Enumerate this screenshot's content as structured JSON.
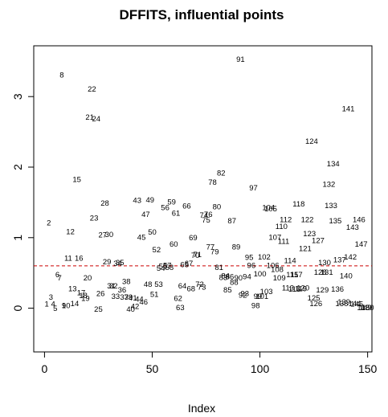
{
  "chart_data": {
    "type": "scatter",
    "title": "DFFITS, influential points",
    "xlabel": "Index",
    "ylabel": "",
    "xlim": [
      -5,
      152
    ],
    "ylim": [
      -0.62,
      3.72
    ],
    "xticks": [
      0,
      50,
      100,
      150
    ],
    "yticks": [
      0,
      1,
      2,
      3
    ],
    "grid": false,
    "reference_line": {
      "y": 0.6,
      "color": "#cc0000",
      "style": "dashed"
    },
    "points": [
      {
        "label": "1",
        "x": 1,
        "y": 0.05
      },
      {
        "label": "2",
        "x": 2,
        "y": 1.2
      },
      {
        "label": "3",
        "x": 3,
        "y": 0.15
      },
      {
        "label": "4",
        "x": 4,
        "y": 0.05
      },
      {
        "label": "5",
        "x": 5,
        "y": -0.01
      },
      {
        "label": "6",
        "x": 6,
        "y": 0.47
      },
      {
        "label": "7",
        "x": 7,
        "y": 0.42
      },
      {
        "label": "8",
        "x": 8,
        "y": 3.3
      },
      {
        "label": "9",
        "x": 9,
        "y": 0.03
      },
      {
        "label": "10",
        "x": 10,
        "y": 0.03
      },
      {
        "label": "11",
        "x": 11,
        "y": 0.7
      },
      {
        "label": "12",
        "x": 12,
        "y": 1.08
      },
      {
        "label": "13",
        "x": 13,
        "y": 0.27
      },
      {
        "label": "14",
        "x": 14,
        "y": 0.06
      },
      {
        "label": "15",
        "x": 15,
        "y": 1.82
      },
      {
        "label": "16",
        "x": 16,
        "y": 0.7
      },
      {
        "label": "17",
        "x": 17,
        "y": 0.21
      },
      {
        "label": "18",
        "x": 18,
        "y": 0.17
      },
      {
        "label": "19",
        "x": 19,
        "y": 0.13
      },
      {
        "label": "20",
        "x": 20,
        "y": 0.42
      },
      {
        "label": "21",
        "x": 21,
        "y": 2.7
      },
      {
        "label": "22",
        "x": 22,
        "y": 3.1
      },
      {
        "label": "23",
        "x": 23,
        "y": 1.27
      },
      {
        "label": "24",
        "x": 24,
        "y": 2.68
      },
      {
        "label": "25",
        "x": 25,
        "y": -0.02
      },
      {
        "label": "26",
        "x": 26,
        "y": 0.2
      },
      {
        "label": "27",
        "x": 27,
        "y": 1.03
      },
      {
        "label": "28",
        "x": 28,
        "y": 1.48
      },
      {
        "label": "29",
        "x": 29,
        "y": 0.65
      },
      {
        "label": "30",
        "x": 30,
        "y": 1.04
      },
      {
        "label": "31",
        "x": 31,
        "y": 0.31
      },
      {
        "label": "32",
        "x": 32,
        "y": 0.31
      },
      {
        "label": "33",
        "x": 33,
        "y": 0.16
      },
      {
        "label": "34",
        "x": 34,
        "y": 0.63
      },
      {
        "label": "35",
        "x": 35,
        "y": 0.64
      },
      {
        "label": "36",
        "x": 36,
        "y": 0.25
      },
      {
        "label": "37",
        "x": 37,
        "y": 0.15
      },
      {
        "label": "38",
        "x": 38,
        "y": 0.37
      },
      {
        "label": "39",
        "x": 39,
        "y": 0.15
      },
      {
        "label": "40",
        "x": 40,
        "y": -0.02
      },
      {
        "label": "41",
        "x": 41,
        "y": 0.14
      },
      {
        "label": "42",
        "x": 42,
        "y": 0.02
      },
      {
        "label": "43",
        "x": 43,
        "y": 1.52
      },
      {
        "label": "44",
        "x": 44,
        "y": 0.12
      },
      {
        "label": "45",
        "x": 45,
        "y": 1.0
      },
      {
        "label": "46",
        "x": 46,
        "y": 0.08
      },
      {
        "label": "47",
        "x": 47,
        "y": 1.32
      },
      {
        "label": "48",
        "x": 48,
        "y": 0.33
      },
      {
        "label": "49",
        "x": 49,
        "y": 1.53
      },
      {
        "label": "50",
        "x": 50,
        "y": 1.07
      },
      {
        "label": "51",
        "x": 51,
        "y": 0.19
      },
      {
        "label": "52",
        "x": 52,
        "y": 0.82
      },
      {
        "label": "53",
        "x": 53,
        "y": 0.33
      },
      {
        "label": "54",
        "x": 54,
        "y": 0.56
      },
      {
        "label": "55",
        "x": 55,
        "y": 0.59
      },
      {
        "label": "56",
        "x": 56,
        "y": 1.42
      },
      {
        "label": "57",
        "x": 57,
        "y": 0.6
      },
      {
        "label": "58",
        "x": 58,
        "y": 0.57
      },
      {
        "label": "59",
        "x": 59,
        "y": 1.5
      },
      {
        "label": "60",
        "x": 60,
        "y": 0.9
      },
      {
        "label": "61",
        "x": 61,
        "y": 1.34
      },
      {
        "label": "62",
        "x": 62,
        "y": 0.13
      },
      {
        "label": "63",
        "x": 63,
        "y": 0.0
      },
      {
        "label": "64",
        "x": 64,
        "y": 0.31
      },
      {
        "label": "65",
        "x": 65,
        "y": 0.61
      },
      {
        "label": "66",
        "x": 66,
        "y": 1.44
      },
      {
        "label": "67",
        "x": 67,
        "y": 0.63
      },
      {
        "label": "68",
        "x": 68,
        "y": 0.27
      },
      {
        "label": "69",
        "x": 69,
        "y": 0.99
      },
      {
        "label": "70",
        "x": 70,
        "y": 0.74
      },
      {
        "label": "71",
        "x": 71,
        "y": 0.75
      },
      {
        "label": "72",
        "x": 72,
        "y": 0.33
      },
      {
        "label": "73",
        "x": 73,
        "y": 0.29
      },
      {
        "label": "74",
        "x": 74,
        "y": 1.31
      },
      {
        "label": "75",
        "x": 75,
        "y": 1.24
      },
      {
        "label": "76",
        "x": 76,
        "y": 1.32
      },
      {
        "label": "77",
        "x": 77,
        "y": 0.86
      },
      {
        "label": "78",
        "x": 78,
        "y": 1.78
      },
      {
        "label": "79",
        "x": 79,
        "y": 0.79
      },
      {
        "label": "80",
        "x": 80,
        "y": 1.43
      },
      {
        "label": "81",
        "x": 81,
        "y": 0.57
      },
      {
        "label": "82",
        "x": 82,
        "y": 1.91
      },
      {
        "label": "83",
        "x": 83,
        "y": 0.43
      },
      {
        "label": "84",
        "x": 84,
        "y": 0.45
      },
      {
        "label": "85",
        "x": 85,
        "y": 0.25
      },
      {
        "label": "86",
        "x": 86,
        "y": 0.44
      },
      {
        "label": "87",
        "x": 87,
        "y": 1.23
      },
      {
        "label": "88",
        "x": 88,
        "y": 0.36
      },
      {
        "label": "89",
        "x": 89,
        "y": 0.86
      },
      {
        "label": "90",
        "x": 90,
        "y": 0.42
      },
      {
        "label": "91",
        "x": 91,
        "y": 3.52
      },
      {
        "label": "92",
        "x": 92,
        "y": 0.18
      },
      {
        "label": "93",
        "x": 93,
        "y": 0.2
      },
      {
        "label": "94",
        "x": 94,
        "y": 0.44
      },
      {
        "label": "95",
        "x": 95,
        "y": 0.71
      },
      {
        "label": "96",
        "x": 96,
        "y": 0.6
      },
      {
        "label": "97",
        "x": 97,
        "y": 1.7
      },
      {
        "label": "98",
        "x": 98,
        "y": 0.03
      },
      {
        "label": "99",
        "x": 99,
        "y": 0.16
      },
      {
        "label": "100",
        "x": 100,
        "y": 0.48
      },
      {
        "label": "101",
        "x": 101,
        "y": 0.16
      },
      {
        "label": "102",
        "x": 102,
        "y": 0.72
      },
      {
        "label": "103",
        "x": 103,
        "y": 0.23
      },
      {
        "label": "104",
        "x": 104,
        "y": 1.42
      },
      {
        "label": "105",
        "x": 105,
        "y": 1.4
      },
      {
        "label": "106",
        "x": 106,
        "y": 0.6
      },
      {
        "label": "107",
        "x": 107,
        "y": 1.0
      },
      {
        "label": "108",
        "x": 108,
        "y": 0.54
      },
      {
        "label": "109",
        "x": 109,
        "y": 0.42
      },
      {
        "label": "110",
        "x": 110,
        "y": 1.15
      },
      {
        "label": "111",
        "x": 111,
        "y": 0.94
      },
      {
        "label": "112",
        "x": 112,
        "y": 1.25
      },
      {
        "label": "113",
        "x": 113,
        "y": 0.28
      },
      {
        "label": "114",
        "x": 114,
        "y": 0.67
      },
      {
        "label": "115",
        "x": 115,
        "y": 0.47
      },
      {
        "label": "116",
        "x": 116,
        "y": 0.26
      },
      {
        "label": "117",
        "x": 117,
        "y": 0.47
      },
      {
        "label": "118",
        "x": 118,
        "y": 1.47
      },
      {
        "label": "119",
        "x": 119,
        "y": 0.27
      },
      {
        "label": "120",
        "x": 120,
        "y": 0.28
      },
      {
        "label": "121",
        "x": 121,
        "y": 0.84
      },
      {
        "label": "122",
        "x": 122,
        "y": 1.25
      },
      {
        "label": "123",
        "x": 123,
        "y": 1.05
      },
      {
        "label": "124",
        "x": 124,
        "y": 2.36
      },
      {
        "label": "125",
        "x": 125,
        "y": 0.14
      },
      {
        "label": "126",
        "x": 126,
        "y": 0.06
      },
      {
        "label": "127",
        "x": 127,
        "y": 0.95
      },
      {
        "label": "128",
        "x": 128,
        "y": 0.5
      },
      {
        "label": "129",
        "x": 129,
        "y": 0.25
      },
      {
        "label": "130",
        "x": 130,
        "y": 0.64
      },
      {
        "label": "131",
        "x": 131,
        "y": 0.5
      },
      {
        "label": "132",
        "x": 132,
        "y": 1.75
      },
      {
        "label": "133",
        "x": 133,
        "y": 1.45
      },
      {
        "label": "134",
        "x": 134,
        "y": 2.04
      },
      {
        "label": "135",
        "x": 135,
        "y": 1.23
      },
      {
        "label": "136",
        "x": 136,
        "y": 0.26
      },
      {
        "label": "137",
        "x": 137,
        "y": 0.68
      },
      {
        "label": "138",
        "x": 138,
        "y": 0.06
      },
      {
        "label": "139",
        "x": 139,
        "y": 0.08
      },
      {
        "label": "140",
        "x": 140,
        "y": 0.45
      },
      {
        "label": "141",
        "x": 141,
        "y": 2.82
      },
      {
        "label": "142",
        "x": 142,
        "y": 0.72
      },
      {
        "label": "143",
        "x": 143,
        "y": 1.14
      },
      {
        "label": "144",
        "x": 144,
        "y": 0.06
      },
      {
        "label": "145",
        "x": 145,
        "y": 0.05
      },
      {
        "label": "146",
        "x": 146,
        "y": 1.25
      },
      {
        "label": "147",
        "x": 147,
        "y": 0.9
      },
      {
        "label": "148",
        "x": 148,
        "y": 0.0
      },
      {
        "label": "149",
        "x": 149,
        "y": 0.0
      },
      {
        "label": "150",
        "x": 150,
        "y": 0.0
      }
    ]
  }
}
